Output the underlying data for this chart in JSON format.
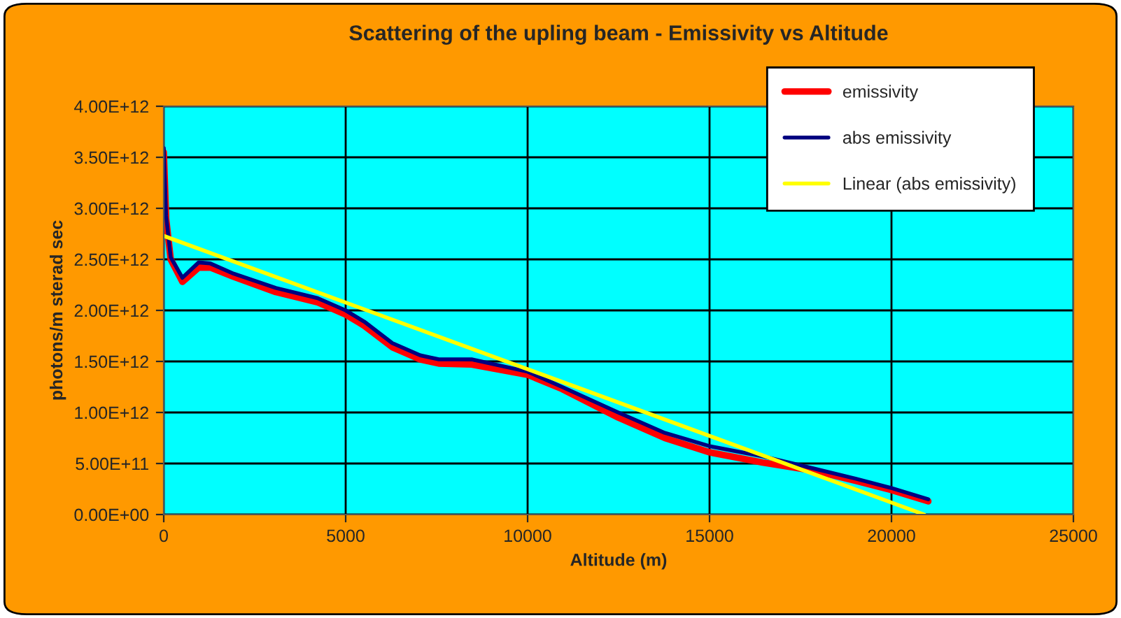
{
  "chart_data": {
    "type": "line",
    "title": "Scattering of the upling beam - Emissivity vs Altitude",
    "xlabel": "Altitude (m)",
    "ylabel": "photons/m sterad sec",
    "series": [
      {
        "name": "emissivity",
        "color": "#ff0000",
        "x": [
          0,
          64,
          192,
          513,
          960,
          1280,
          1920,
          3080,
          4230,
          5000,
          5510,
          6280,
          7050,
          7560,
          8460,
          10000,
          10950,
          12490,
          13770,
          15000,
          16460,
          17870,
          19030,
          20000,
          21010
        ],
        "values": [
          3550000000000.0,
          2900000000000.0,
          2500000000000.0,
          2280000000000.0,
          2420000000000.0,
          2420000000000.0,
          2330000000000.0,
          2180000000000.0,
          2080000000000.0,
          1960000000000.0,
          1850000000000.0,
          1640000000000.0,
          1520000000000.0,
          1480000000000.0,
          1470000000000.0,
          1370000000000.0,
          1230000000000.0,
          950000000000.0,
          750000000000.0,
          610000000000.0,
          510000000000.0,
          430000000000.0,
          330000000000.0,
          240000000000.0,
          130000000000.0
        ]
      },
      {
        "name": "abs emissivity",
        "color": "#000080",
        "x": [
          0,
          64,
          192,
          513,
          960,
          1280,
          1920,
          3080,
          4230,
          5000,
          5510,
          6280,
          7050,
          7560,
          8460,
          10000,
          10950,
          12490,
          13770,
          15000,
          16460,
          17870,
          19030,
          20000,
          21010
        ],
        "values": [
          3590000000000.0,
          2930000000000.0,
          2520000000000.0,
          2320000000000.0,
          2470000000000.0,
          2460000000000.0,
          2360000000000.0,
          2220000000000.0,
          2120000000000.0,
          2000000000000.0,
          1890000000000.0,
          1680000000000.0,
          1560000000000.0,
          1520000000000.0,
          1520000000000.0,
          1400000000000.0,
          1250000000000.0,
          1000000000000.0,
          800000000000.0,
          670000000000.0,
          570000000000.0,
          450000000000.0,
          350000000000.0,
          260000000000.0,
          150000000000.0
        ]
      },
      {
        "name": "Linear (abs emissivity)",
        "color": "#ffff00",
        "x": [
          0,
          20900
        ],
        "values": [
          2730000000000.0,
          0
        ]
      }
    ],
    "xlim": [
      0,
      25000
    ],
    "xticks": [
      0,
      5000,
      10000,
      15000,
      20000,
      25000
    ],
    "ylim": [
      0,
      4000000000000.0
    ],
    "yticks": [
      {
        "value": 0,
        "label": "0.00E+00"
      },
      {
        "value": 500000000000.0,
        "label": "5.00E+11"
      },
      {
        "value": 1000000000000.0,
        "label": "1.00E+12"
      },
      {
        "value": 1500000000000.0,
        "label": "1.50E+12"
      },
      {
        "value": 2000000000000.0,
        "label": "2.00E+12"
      },
      {
        "value": 2500000000000.0,
        "label": "2.50E+12"
      },
      {
        "value": 3000000000000.0,
        "label": "3.00E+12"
      },
      {
        "value": 3500000000000.0,
        "label": "3.50E+12"
      },
      {
        "value": 4000000000000.0,
        "label": "4.00E+12"
      }
    ],
    "grid": true,
    "legend": "top right",
    "marker": "none",
    "line_style": "solid"
  }
}
